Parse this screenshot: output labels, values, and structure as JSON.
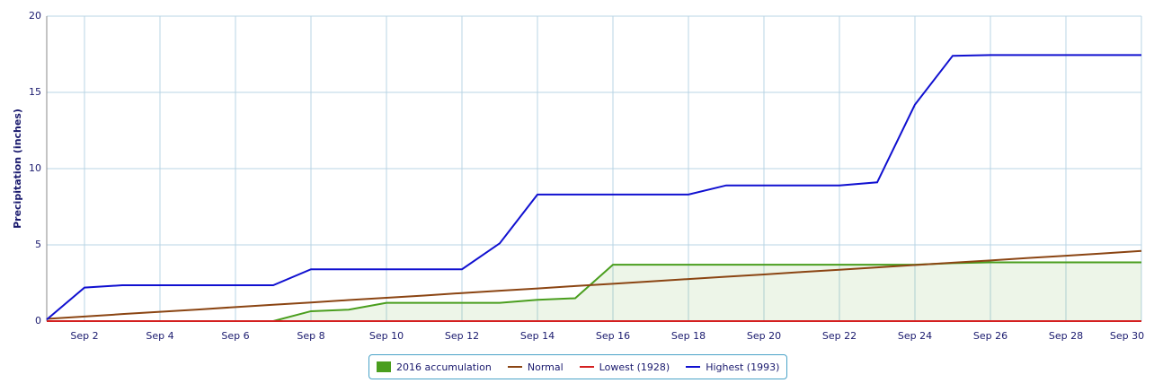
{
  "chart_data": {
    "type": "line",
    "y_label": "Precipitation (inches)",
    "categories": [
      null,
      "Sep 2",
      null,
      "Sep 4",
      null,
      "Sep 6",
      null,
      "Sep 8",
      null,
      "Sep 10",
      null,
      "Sep 12",
      null,
      "Sep 14",
      null,
      "Sep 16",
      null,
      "Sep 18",
      null,
      "Sep 20",
      null,
      "Sep 22",
      null,
      "Sep 24",
      null,
      "Sep 26",
      null,
      "Sep 28",
      null,
      "Sep 30"
    ],
    "series": [
      {
        "name": "2016 accumulation",
        "color": "#4a9e1e",
        "fill": true,
        "values": [
          0,
          0,
          0,
          0,
          0,
          0,
          0,
          0.65,
          0.75,
          1.2,
          1.2,
          1.2,
          1.2,
          1.4,
          1.5,
          3.7,
          3.7,
          3.7,
          3.7,
          3.7,
          3.7,
          3.7,
          3.7,
          3.7,
          3.8,
          3.85,
          3.85,
          3.85,
          3.85,
          3.85
        ]
      },
      {
        "name": "Normal",
        "color": "#8b4513",
        "values": [
          0.15,
          0.3,
          0.46,
          0.61,
          0.76,
          0.92,
          1.07,
          1.22,
          1.38,
          1.53,
          1.68,
          1.84,
          1.99,
          2.14,
          2.3,
          2.45,
          2.6,
          2.76,
          2.91,
          3.06,
          3.22,
          3.37,
          3.52,
          3.68,
          3.83,
          3.98,
          4.14,
          4.29,
          4.44,
          4.6
        ]
      },
      {
        "name": "Lowest (1928)",
        "color": "#d42020",
        "values": [
          0,
          0,
          0,
          0,
          0,
          0,
          0,
          0,
          0,
          0,
          0,
          0,
          0,
          0,
          0,
          0,
          0,
          0,
          0,
          0,
          0,
          0,
          0,
          0,
          0,
          0,
          0,
          0,
          0,
          0
        ]
      },
      {
        "name": "Highest (1993)",
        "color": "#1010d0",
        "values": [
          0.1,
          2.2,
          2.35,
          2.35,
          2.35,
          2.35,
          2.35,
          3.4,
          3.4,
          3.4,
          3.4,
          3.4,
          5.1,
          8.3,
          8.3,
          8.3,
          8.3,
          8.3,
          8.9,
          8.9,
          8.9,
          8.9,
          9.1,
          14.2,
          17.4,
          17.45,
          17.45,
          17.45,
          17.45,
          17.45
        ]
      }
    ],
    "ylim": [
      0,
      20
    ],
    "yticks": [
      0,
      5,
      10,
      15,
      20
    ],
    "grid": true
  }
}
